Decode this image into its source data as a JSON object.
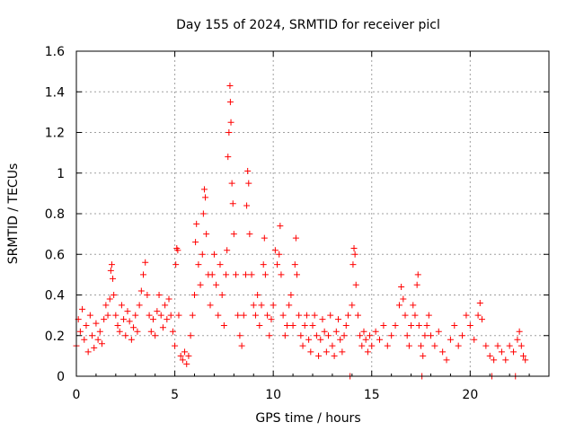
{
  "chart_data": {
    "type": "scatter",
    "title": "Day 155 of 2024, SRMTID for receiver picl",
    "xlabel": "GPS time / hours",
    "ylabel": "SRMTID / TECUs",
    "xlim": [
      0,
      24
    ],
    "ylim": [
      0,
      1.6
    ],
    "xticks": [
      {
        "value": 0,
        "label": "0"
      },
      {
        "value": 5,
        "label": "5"
      },
      {
        "value": 10,
        "label": "10"
      },
      {
        "value": 15,
        "label": "15"
      },
      {
        "value": 20,
        "label": "20"
      }
    ],
    "yticks": [
      {
        "value": 0,
        "label": "0"
      },
      {
        "value": 0.2,
        "label": "0.2"
      },
      {
        "value": 0.4,
        "label": "0.4"
      },
      {
        "value": 0.6,
        "label": "0.6"
      },
      {
        "value": 0.8,
        "label": "0.8"
      },
      {
        "value": 1.0,
        "label": "1"
      },
      {
        "value": 1.2,
        "label": "1.2"
      },
      {
        "value": 1.4,
        "label": "1.4"
      },
      {
        "value": 1.6,
        "label": "1.6"
      }
    ],
    "grid": true,
    "marker": "+",
    "marker_color": "#ff0000",
    "grid_color": "#a0a0a0",
    "series": [
      {
        "name": "SRMTID",
        "points": [
          [
            0.0,
            0.15
          ],
          [
            0.1,
            0.28
          ],
          [
            0.2,
            0.22
          ],
          [
            0.3,
            0.33
          ],
          [
            0.4,
            0.18
          ],
          [
            0.5,
            0.25
          ],
          [
            0.6,
            0.12
          ],
          [
            0.7,
            0.3
          ],
          [
            0.8,
            0.2
          ],
          [
            0.9,
            0.14
          ],
          [
            1.0,
            0.26
          ],
          [
            1.1,
            0.18
          ],
          [
            1.2,
            0.22
          ],
          [
            1.3,
            0.16
          ],
          [
            1.4,
            0.28
          ],
          [
            1.5,
            0.35
          ],
          [
            1.6,
            0.3
          ],
          [
            1.7,
            0.38
          ],
          [
            1.75,
            0.52
          ],
          [
            1.8,
            0.55
          ],
          [
            1.85,
            0.48
          ],
          [
            1.9,
            0.4
          ],
          [
            2.0,
            0.3
          ],
          [
            2.1,
            0.25
          ],
          [
            2.2,
            0.22
          ],
          [
            2.3,
            0.35
          ],
          [
            2.4,
            0.28
          ],
          [
            2.5,
            0.2
          ],
          [
            2.6,
            0.32
          ],
          [
            2.7,
            0.27
          ],
          [
            2.8,
            0.18
          ],
          [
            2.9,
            0.24
          ],
          [
            3.0,
            0.3
          ],
          [
            3.1,
            0.22
          ],
          [
            3.2,
            0.35
          ],
          [
            3.3,
            0.42
          ],
          [
            3.4,
            0.5
          ],
          [
            3.5,
            0.56
          ],
          [
            3.6,
            0.4
          ],
          [
            3.7,
            0.3
          ],
          [
            3.8,
            0.22
          ],
          [
            3.9,
            0.28
          ],
          [
            4.0,
            0.2
          ],
          [
            4.1,
            0.32
          ],
          [
            4.2,
            0.4
          ],
          [
            4.3,
            0.3
          ],
          [
            4.4,
            0.24
          ],
          [
            4.5,
            0.35
          ],
          [
            4.6,
            0.28
          ],
          [
            4.7,
            0.38
          ],
          [
            4.8,
            0.3
          ],
          [
            4.9,
            0.22
          ],
          [
            5.0,
            0.15
          ],
          [
            5.05,
            0.55
          ],
          [
            5.1,
            0.63
          ],
          [
            5.15,
            0.62
          ],
          [
            5.2,
            0.3
          ],
          [
            5.3,
            0.1
          ],
          [
            5.4,
            0.08
          ],
          [
            5.5,
            0.12
          ],
          [
            5.6,
            0.06
          ],
          [
            5.7,
            0.1
          ],
          [
            5.8,
            0.2
          ],
          [
            5.9,
            0.3
          ],
          [
            6.0,
            0.4
          ],
          [
            6.05,
            0.66
          ],
          [
            6.1,
            0.75
          ],
          [
            6.2,
            0.55
          ],
          [
            6.3,
            0.45
          ],
          [
            6.4,
            0.6
          ],
          [
            6.45,
            0.8
          ],
          [
            6.5,
            0.92
          ],
          [
            6.55,
            0.88
          ],
          [
            6.6,
            0.7
          ],
          [
            6.7,
            0.5
          ],
          [
            6.8,
            0.35
          ],
          [
            6.9,
            0.5
          ],
          [
            7.0,
            0.6
          ],
          [
            7.1,
            0.45
          ],
          [
            7.2,
            0.3
          ],
          [
            7.3,
            0.55
          ],
          [
            7.4,
            0.4
          ],
          [
            7.5,
            0.25
          ],
          [
            7.6,
            0.5
          ],
          [
            7.65,
            0.62
          ],
          [
            7.7,
            1.08
          ],
          [
            7.75,
            1.2
          ],
          [
            7.8,
            1.43
          ],
          [
            7.82,
            1.35
          ],
          [
            7.85,
            1.25
          ],
          [
            7.9,
            0.95
          ],
          [
            7.95,
            0.85
          ],
          [
            8.0,
            0.7
          ],
          [
            8.1,
            0.5
          ],
          [
            8.2,
            0.3
          ],
          [
            8.3,
            0.2
          ],
          [
            8.4,
            0.15
          ],
          [
            8.5,
            0.3
          ],
          [
            8.6,
            0.5
          ],
          [
            8.65,
            0.84
          ],
          [
            8.7,
            1.01
          ],
          [
            8.75,
            0.95
          ],
          [
            8.8,
            0.7
          ],
          [
            8.9,
            0.5
          ],
          [
            9.0,
            0.35
          ],
          [
            9.1,
            0.3
          ],
          [
            9.2,
            0.4
          ],
          [
            9.3,
            0.25
          ],
          [
            9.4,
            0.35
          ],
          [
            9.5,
            0.55
          ],
          [
            9.55,
            0.68
          ],
          [
            9.6,
            0.5
          ],
          [
            9.7,
            0.3
          ],
          [
            9.8,
            0.2
          ],
          [
            9.9,
            0.28
          ],
          [
            10.0,
            0.35
          ],
          [
            10.1,
            0.62
          ],
          [
            10.2,
            0.55
          ],
          [
            10.3,
            0.6
          ],
          [
            10.35,
            0.74
          ],
          [
            10.4,
            0.5
          ],
          [
            10.5,
            0.3
          ],
          [
            10.6,
            0.2
          ],
          [
            10.7,
            0.25
          ],
          [
            10.8,
            0.35
          ],
          [
            10.9,
            0.4
          ],
          [
            11.0,
            0.25
          ],
          [
            11.1,
            0.55
          ],
          [
            11.15,
            0.68
          ],
          [
            11.2,
            0.5
          ],
          [
            11.3,
            0.3
          ],
          [
            11.4,
            0.2
          ],
          [
            11.5,
            0.15
          ],
          [
            11.6,
            0.25
          ],
          [
            11.7,
            0.3
          ],
          [
            11.8,
            0.18
          ],
          [
            11.9,
            0.12
          ],
          [
            12.0,
            0.25
          ],
          [
            12.1,
            0.3
          ],
          [
            12.2,
            0.2
          ],
          [
            12.3,
            0.1
          ],
          [
            12.4,
            0.18
          ],
          [
            12.5,
            0.28
          ],
          [
            12.6,
            0.22
          ],
          [
            12.7,
            0.12
          ],
          [
            12.8,
            0.2
          ],
          [
            12.9,
            0.3
          ],
          [
            13.0,
            0.15
          ],
          [
            13.1,
            0.1
          ],
          [
            13.2,
            0.22
          ],
          [
            13.3,
            0.28
          ],
          [
            13.4,
            0.18
          ],
          [
            13.5,
            0.12
          ],
          [
            13.6,
            0.2
          ],
          [
            13.7,
            0.25
          ],
          [
            13.8,
            0.3
          ],
          [
            13.9,
            0.0
          ],
          [
            14.0,
            0.35
          ],
          [
            14.05,
            0.55
          ],
          [
            14.1,
            0.63
          ],
          [
            14.15,
            0.6
          ],
          [
            14.2,
            0.45
          ],
          [
            14.3,
            0.3
          ],
          [
            14.4,
            0.2
          ],
          [
            14.5,
            0.15
          ],
          [
            14.6,
            0.22
          ],
          [
            14.7,
            0.18
          ],
          [
            14.8,
            0.12
          ],
          [
            14.9,
            0.2
          ],
          [
            15.0,
            0.15
          ],
          [
            15.2,
            0.22
          ],
          [
            15.4,
            0.18
          ],
          [
            15.6,
            0.25
          ],
          [
            15.8,
            0.15
          ],
          [
            16.0,
            0.2
          ],
          [
            16.2,
            0.25
          ],
          [
            16.4,
            0.35
          ],
          [
            16.5,
            0.44
          ],
          [
            16.6,
            0.38
          ],
          [
            16.7,
            0.3
          ],
          [
            16.8,
            0.2
          ],
          [
            16.9,
            0.15
          ],
          [
            17.0,
            0.25
          ],
          [
            17.1,
            0.35
          ],
          [
            17.2,
            0.3
          ],
          [
            17.3,
            0.45
          ],
          [
            17.35,
            0.5
          ],
          [
            17.4,
            0.25
          ],
          [
            17.5,
            0.15
          ],
          [
            17.55,
            0.0
          ],
          [
            17.6,
            0.1
          ],
          [
            17.7,
            0.2
          ],
          [
            17.8,
            0.25
          ],
          [
            17.9,
            0.3
          ],
          [
            18.0,
            0.2
          ],
          [
            18.2,
            0.15
          ],
          [
            18.4,
            0.22
          ],
          [
            18.6,
            0.12
          ],
          [
            18.8,
            0.08
          ],
          [
            19.0,
            0.18
          ],
          [
            19.2,
            0.25
          ],
          [
            19.4,
            0.15
          ],
          [
            19.6,
            0.2
          ],
          [
            19.8,
            0.3
          ],
          [
            20.0,
            0.25
          ],
          [
            20.2,
            0.18
          ],
          [
            20.4,
            0.3
          ],
          [
            20.5,
            0.36
          ],
          [
            20.6,
            0.28
          ],
          [
            20.8,
            0.15
          ],
          [
            21.0,
            0.1
          ],
          [
            21.1,
            0.0
          ],
          [
            21.2,
            0.08
          ],
          [
            21.4,
            0.15
          ],
          [
            21.6,
            0.12
          ],
          [
            21.8,
            0.08
          ],
          [
            22.0,
            0.15
          ],
          [
            22.2,
            0.12
          ],
          [
            22.3,
            0.0
          ],
          [
            22.4,
            0.18
          ],
          [
            22.5,
            0.22
          ],
          [
            22.6,
            0.15
          ],
          [
            22.7,
            0.1
          ],
          [
            22.8,
            0.08
          ]
        ]
      }
    ]
  }
}
